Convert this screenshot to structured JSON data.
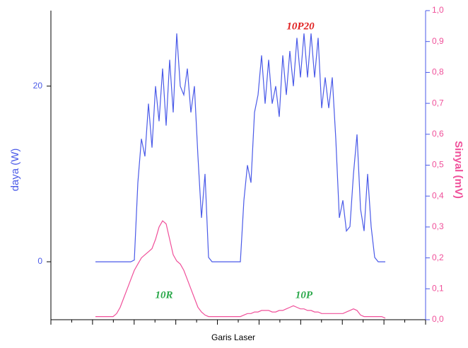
{
  "chart_data": {
    "type": "line",
    "xlabel": "Garis Laser",
    "ylabel": "daya (W)",
    "y2label": "Sinyal (mV)",
    "ylim": [
      -6.6,
      28.6
    ],
    "yticks": [
      0,
      20
    ],
    "y2lim": [
      0,
      1.0
    ],
    "y2ticks": [
      {
        "value": 0,
        "label": "0,0"
      },
      {
        "value": 0.1,
        "label": "0,1"
      },
      {
        "value": 0.2,
        "label": "0,2"
      },
      {
        "value": 0.3,
        "label": "0,3"
      },
      {
        "value": 0.4,
        "label": "0,4"
      },
      {
        "value": 0.5,
        "label": "0,5"
      },
      {
        "value": 0.6,
        "label": "0,6"
      },
      {
        "value": 0.7,
        "label": "0,7"
      },
      {
        "value": 0.8,
        "label": "0,8"
      },
      {
        "value": 0.9,
        "label": "0,9"
      },
      {
        "value": 1.0,
        "label": "1,0"
      }
    ],
    "series": [
      {
        "name": "daya",
        "color": "#4a5ae8",
        "values": [
          0,
          0,
          0,
          0,
          0,
          0,
          0,
          0,
          0,
          0,
          0,
          0.2,
          9,
          14,
          12,
          18,
          13,
          20,
          16,
          22,
          15.5,
          23,
          17,
          26,
          20,
          19,
          22,
          17,
          20,
          12,
          5,
          10,
          0.5,
          0,
          0,
          0,
          0,
          0,
          0,
          0,
          0,
          0,
          7,
          11,
          9,
          17,
          19,
          23.5,
          18,
          23,
          18,
          20,
          16.5,
          23.5,
          19,
          24,
          20,
          25.5,
          21,
          26,
          21,
          26,
          21,
          25.5,
          17.5,
          21,
          17.5,
          21,
          14,
          5,
          7,
          3.5,
          4,
          10,
          14.5,
          6,
          3.5,
          10,
          4,
          0.5,
          0,
          0,
          0
        ]
      },
      {
        "name": "sinyal",
        "color": "#f0509a",
        "axis": "y2",
        "values": [
          0.01,
          0.01,
          0.01,
          0.01,
          0.01,
          0.01,
          0.02,
          0.04,
          0.07,
          0.1,
          0.13,
          0.16,
          0.18,
          0.2,
          0.21,
          0.22,
          0.23,
          0.26,
          0.3,
          0.32,
          0.31,
          0.26,
          0.21,
          0.19,
          0.18,
          0.16,
          0.13,
          0.1,
          0.07,
          0.04,
          0.025,
          0.015,
          0.01,
          0.01,
          0.01,
          0.01,
          0.01,
          0.01,
          0.01,
          0.01,
          0.01,
          0.01,
          0.015,
          0.02,
          0.02,
          0.025,
          0.025,
          0.03,
          0.03,
          0.03,
          0.025,
          0.025,
          0.03,
          0.03,
          0.035,
          0.04,
          0.045,
          0.04,
          0.035,
          0.035,
          0.03,
          0.03,
          0.025,
          0.025,
          0.02,
          0.02,
          0.02,
          0.02,
          0.02,
          0.02,
          0.02,
          0.025,
          0.03,
          0.035,
          0.03,
          0.015,
          0.01,
          0.01,
          0.01,
          0.01,
          0.01,
          0.01,
          0.005
        ]
      }
    ],
    "annotations": [
      {
        "text": "10P20",
        "color": "#e02020"
      },
      {
        "text": "10R",
        "color": "#2aa84a"
      },
      {
        "text": "10P",
        "color": "#2aa84a"
      }
    ]
  }
}
